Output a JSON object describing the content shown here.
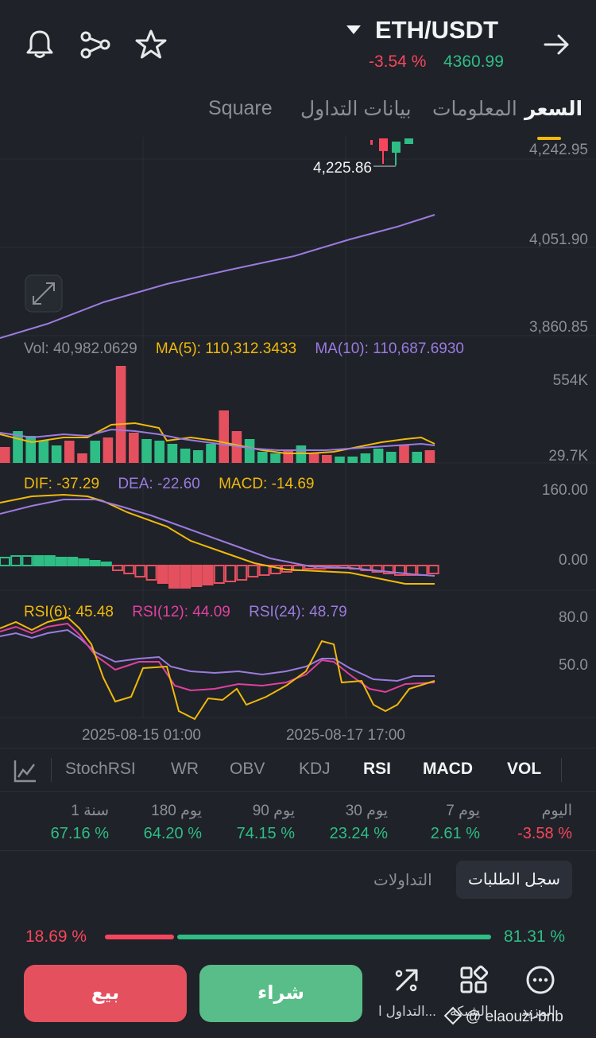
{
  "header": {
    "pair": "ETH/USDT",
    "change": "-3.54 %",
    "price": "4360.99",
    "icons": [
      "bell-icon",
      "share-icon",
      "star-icon",
      "arrow-right-icon",
      "caret-down-icon"
    ]
  },
  "tabs": [
    {
      "label": "السعر",
      "active": true
    },
    {
      "label": "المعلومات",
      "active": false
    },
    {
      "label": "بيانات التداول",
      "active": false
    },
    {
      "label": "Square",
      "active": false
    }
  ],
  "price_chart": {
    "y_labels": [
      "4,242.95",
      "4,051.90",
      "3,860.85"
    ],
    "low_marker": "4,225.86"
  },
  "vol_legend": {
    "vol": "Vol: 40,982.0629",
    "ma5": "MA(5): 110,312.3433",
    "ma10": "MA(10): 110,687.6930",
    "y_top": "554K",
    "y_bottom": "29.7K"
  },
  "macd_legend": {
    "dif": "DIF: -37.29",
    "dea": "DEA: -22.60",
    "macd": "MACD: -14.69",
    "y_top": "160.00",
    "y_mid": "0.00"
  },
  "rsi_legend": {
    "rsi6": "RSI(6): 45.48",
    "rsi12": "RSI(12): 44.09",
    "rsi24": "RSI(24): 48.79",
    "y_top": "80.0",
    "y_mid": "50.0"
  },
  "x_labels": [
    "2025-08-15 01:00",
    "2025-08-17 17:00"
  ],
  "indicator_tabs": [
    {
      "label": "StochRSI",
      "active": false
    },
    {
      "label": "WR",
      "active": false
    },
    {
      "label": "OBV",
      "active": false
    },
    {
      "label": "KDJ",
      "active": false
    },
    {
      "label": "RSI",
      "active": true
    },
    {
      "label": "MACD",
      "active": true
    },
    {
      "label": "VOL",
      "active": true
    }
  ],
  "performance": [
    {
      "label": "اليوم",
      "value": "-3.58 %",
      "positive": false
    },
    {
      "label": "7 يوم",
      "value": "2.61 %",
      "positive": true
    },
    {
      "label": "30 يوم",
      "value": "23.24 %",
      "positive": true
    },
    {
      "label": "90 يوم",
      "value": "74.15 %",
      "positive": true
    },
    {
      "label": "180 يوم",
      "value": "64.20 %",
      "positive": true
    },
    {
      "label": "1 سنة",
      "value": "67.16 %",
      "positive": true
    }
  ],
  "orderbook": {
    "tab_active": "سجل الطلبات",
    "tab_trades": "التداولات",
    "sell_ratio": "18.69 %",
    "buy_ratio": "81.31 %",
    "buy_fraction": 0.8131
  },
  "footer": {
    "sell": "بيع",
    "buy": "شراء",
    "more_label": "المزيد",
    "grid_label": "الشبكة",
    "trade_label": "التداول ا...",
    "watermark": "@ elaouzi-bnb"
  },
  "colors": {
    "green": "#2ebd85",
    "red": "#f6465d",
    "ma5": "#f0b90b",
    "ma10": "#9b7be0",
    "rsi12": "#e040a0"
  }
}
